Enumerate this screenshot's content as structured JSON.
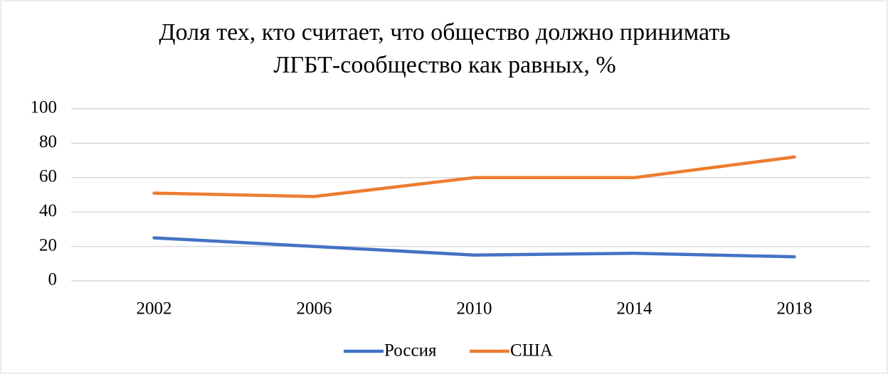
{
  "chart_data": {
    "type": "line",
    "title": [
      "Доля тех, кто считает, что общество должно принимать",
      "ЛГБТ-сообщество как равных, %"
    ],
    "categories": [
      "2002",
      "2006",
      "2010",
      "2014",
      "2018"
    ],
    "series": [
      {
        "name": "Россия",
        "color": "#4472c4",
        "values": [
          25,
          20,
          15,
          16,
          14
        ]
      },
      {
        "name": "США",
        "color": "#ed7d31",
        "values": [
          51,
          49,
          60,
          60,
          72
        ]
      }
    ],
    "ylim": [
      0,
      100
    ],
    "yticks": [
      0,
      20,
      40,
      60,
      80,
      100
    ],
    "grid": true,
    "legend": "bottom"
  }
}
